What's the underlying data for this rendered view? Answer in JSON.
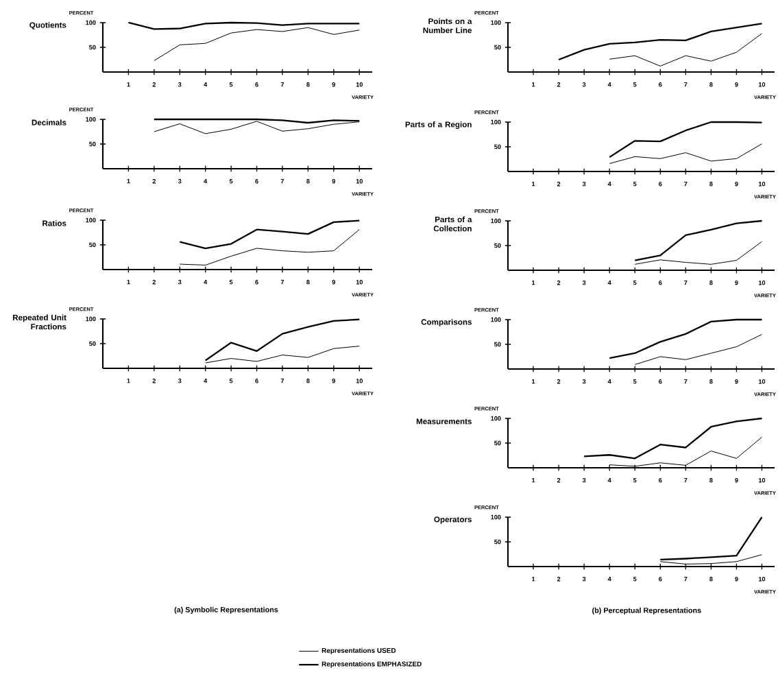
{
  "chart_data": [
    {
      "type": "line",
      "title": "Quotients",
      "xlabel": "VARIETY",
      "ylabel": "PERCENT",
      "xlim": [
        0,
        10.5
      ],
      "ylim": [
        0,
        100
      ],
      "xticks": [
        1,
        2,
        3,
        4,
        5,
        6,
        7,
        8,
        9,
        10
      ],
      "yticks": [
        50,
        100
      ],
      "series": [
        {
          "color": "#000000",
          "x": [
            2,
            3,
            4,
            5,
            6,
            7,
            8,
            9,
            10
          ],
          "values": [
            23,
            55,
            58,
            79,
            86,
            82,
            90,
            76,
            85
          ]
        },
        {
          "color": "#000000",
          "x": [
            1,
            2,
            3,
            4,
            5,
            6,
            7,
            8,
            9,
            10
          ],
          "values": [
            100,
            87,
            88,
            98,
            100,
            99,
            95,
            98,
            98,
            98
          ]
        }
      ]
    },
    {
      "type": "line",
      "title": "Decimals",
      "xlabel": "VARIETY",
      "ylabel": "PERCENT",
      "xlim": [
        0,
        10.5
      ],
      "ylim": [
        0,
        100
      ],
      "xticks": [
        1,
        2,
        3,
        4,
        5,
        6,
        7,
        8,
        9,
        10
      ],
      "yticks": [
        50,
        100
      ],
      "series": [
        {
          "color": "#000000",
          "x": [
            2,
            3,
            4,
            5,
            6,
            7,
            8,
            9,
            10
          ],
          "values": [
            75,
            91,
            71,
            80,
            96,
            76,
            81,
            90,
            95
          ]
        },
        {
          "color": "#000000",
          "x": [
            2,
            3,
            4,
            5,
            6,
            7,
            8,
            9,
            10
          ],
          "values": [
            100,
            100,
            100,
            100,
            100,
            98,
            93,
            98,
            97
          ]
        }
      ]
    },
    {
      "type": "line",
      "title": "Ratios",
      "xlabel": "VARIETY",
      "ylabel": "PERCENT",
      "xlim": [
        0,
        10.5
      ],
      "ylim": [
        0,
        100
      ],
      "xticks": [
        1,
        2,
        3,
        4,
        5,
        6,
        7,
        8,
        9,
        10
      ],
      "yticks": [
        50,
        100
      ],
      "series": [
        {
          "color": "#000000",
          "x": [
            3,
            4,
            5,
            6,
            7,
            8,
            9,
            10
          ],
          "values": [
            11,
            9,
            27,
            43,
            38,
            35,
            38,
            81
          ]
        },
        {
          "color": "#000000",
          "x": [
            3,
            4,
            5,
            6,
            7,
            8,
            9,
            10
          ],
          "values": [
            56,
            43,
            52,
            81,
            77,
            72,
            96,
            99
          ]
        }
      ]
    },
    {
      "type": "line",
      "title": "Repeated Unit Fractions",
      "xlabel": "VARIETY",
      "ylabel": "PERCENT",
      "xlim": [
        0,
        10.5
      ],
      "ylim": [
        0,
        100
      ],
      "xticks": [
        1,
        2,
        3,
        4,
        5,
        6,
        7,
        8,
        9,
        10
      ],
      "yticks": [
        50,
        100
      ],
      "annotations": [
        "(a) Symbolic Representations"
      ],
      "series": [
        {
          "color": "#000000",
          "x": [
            4,
            5,
            6,
            7,
            8,
            9,
            10
          ],
          "values": [
            11,
            20,
            14,
            27,
            22,
            40,
            45
          ]
        },
        {
          "color": "#000000",
          "x": [
            4,
            5,
            6,
            7,
            8,
            9,
            10
          ],
          "values": [
            16,
            52,
            35,
            70,
            84,
            96,
            99
          ]
        }
      ]
    },
    {
      "type": "line",
      "title": "Points on a Number Line",
      "xlabel": "VARIETY",
      "ylabel": "PERCENT",
      "xlim": [
        0,
        10.5
      ],
      "ylim": [
        0,
        100
      ],
      "xticks": [
        1,
        2,
        3,
        4,
        5,
        6,
        7,
        8,
        9,
        10
      ],
      "yticks": [
        50,
        100
      ],
      "series": [
        {
          "color": "#000000",
          "x": [
            4,
            5,
            6,
            7,
            8,
            9,
            10
          ],
          "values": [
            26,
            33,
            12,
            33,
            22,
            40,
            78
          ]
        },
        {
          "color": "#000000",
          "x": [
            2,
            3,
            4,
            5,
            6,
            7,
            8,
            9,
            10
          ],
          "values": [
            25,
            45,
            57,
            60,
            65,
            64,
            82,
            90,
            98
          ]
        }
      ]
    },
    {
      "type": "line",
      "title": "Parts of a Region",
      "xlabel": "VARIETY",
      "ylabel": "PERCENT",
      "xlim": [
        0,
        10.5
      ],
      "ylim": [
        0,
        100
      ],
      "xticks": [
        1,
        2,
        3,
        4,
        5,
        6,
        7,
        8,
        9,
        10
      ],
      "yticks": [
        50,
        100
      ],
      "series": [
        {
          "color": "#000000",
          "x": [
            4,
            5,
            6,
            7,
            8,
            9,
            10
          ],
          "values": [
            16,
            30,
            26,
            38,
            21,
            26,
            56
          ]
        },
        {
          "color": "#000000",
          "x": [
            4,
            5,
            6,
            7,
            8,
            9,
            10
          ],
          "values": [
            29,
            62,
            61,
            83,
            100,
            100,
            99
          ]
        }
      ]
    },
    {
      "type": "line",
      "title": "Parts of a Collection",
      "xlabel": "VARIETY",
      "ylabel": "PERCENT",
      "xlim": [
        0,
        10.5
      ],
      "ylim": [
        0,
        100
      ],
      "xticks": [
        1,
        2,
        3,
        4,
        5,
        6,
        7,
        8,
        9,
        10
      ],
      "yticks": [
        50,
        100
      ],
      "series": [
        {
          "color": "#000000",
          "x": [
            5,
            6,
            7,
            8,
            9,
            10
          ],
          "values": [
            12,
            21,
            16,
            12,
            20,
            58
          ]
        },
        {
          "color": "#000000",
          "x": [
            5,
            6,
            7,
            8,
            9,
            10
          ],
          "values": [
            20,
            30,
            71,
            82,
            95,
            100
          ]
        }
      ]
    },
    {
      "type": "line",
      "title": "Comparisons",
      "xlabel": "VARIETY",
      "ylabel": "PERCENT",
      "xlim": [
        0,
        10.5
      ],
      "ylim": [
        0,
        100
      ],
      "xticks": [
        1,
        2,
        3,
        4,
        5,
        6,
        7,
        8,
        9,
        10
      ],
      "yticks": [
        50,
        100
      ],
      "series": [
        {
          "color": "#000000",
          "x": [
            5,
            6,
            7,
            8,
            9,
            10
          ],
          "values": [
            9,
            25,
            19,
            32,
            45,
            70
          ]
        },
        {
          "color": "#000000",
          "x": [
            4,
            5,
            6,
            7,
            8,
            9,
            10
          ],
          "values": [
            22,
            32,
            55,
            71,
            96,
            100,
            100
          ]
        }
      ]
    },
    {
      "type": "line",
      "title": "Measurements",
      "xlabel": "VARIETY",
      "ylabel": "PERCENT",
      "xlim": [
        0,
        10.5
      ],
      "ylim": [
        0,
        100
      ],
      "xticks": [
        1,
        2,
        3,
        4,
        5,
        6,
        7,
        8,
        9,
        10
      ],
      "yticks": [
        50,
        100
      ],
      "series": [
        {
          "color": "#000000",
          "x": [
            4,
            5,
            6,
            7,
            8,
            9,
            10
          ],
          "values": [
            6,
            3,
            10,
            5,
            34,
            19,
            62
          ]
        },
        {
          "color": "#000000",
          "x": [
            3,
            4,
            5,
            6,
            7,
            8,
            9,
            10
          ],
          "values": [
            23,
            26,
            19,
            47,
            41,
            83,
            94,
            100
          ]
        }
      ]
    },
    {
      "type": "line",
      "title": "Operators",
      "xlabel": "VARIETY",
      "ylabel": "PERCENT",
      "xlim": [
        0,
        10.5
      ],
      "ylim": [
        0,
        100
      ],
      "xticks": [
        1,
        2,
        3,
        4,
        5,
        6,
        7,
        8,
        9,
        10
      ],
      "yticks": [
        50,
        100
      ],
      "legend": "bottom",
      "annotations": [
        "(b) Perceptual Representations"
      ],
      "series": [
        {
          "name": "Representations USED",
          "color": "#000000",
          "x": [
            6,
            7,
            8,
            9,
            10
          ],
          "values": [
            10,
            5,
            6,
            10,
            24
          ]
        },
        {
          "name": "Representations EMPHASIZED",
          "color": "#000000",
          "x": [
            6,
            7,
            8,
            9,
            10
          ],
          "values": [
            14,
            16,
            19,
            22,
            100
          ]
        }
      ]
    }
  ]
}
